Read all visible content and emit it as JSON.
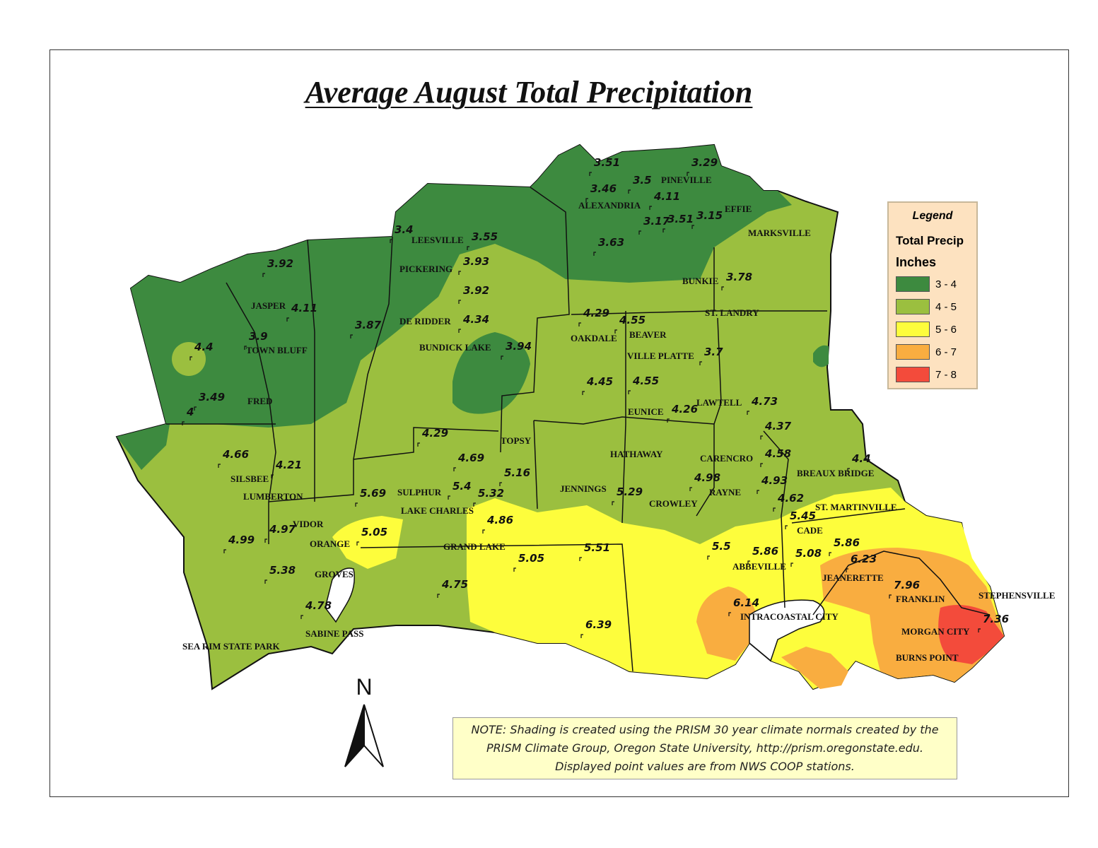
{
  "title": "Average August Total Precipitation",
  "legend": {
    "heading": "Legend",
    "subtitle": "Total Precip",
    "units": "Inches",
    "classes": [
      {
        "label": "3 - 4",
        "color": "#3d8a3f"
      },
      {
        "label": "4 - 5",
        "color": "#9bbf3f"
      },
      {
        "label": "5 - 6",
        "color": "#fdfd3c"
      },
      {
        "label": "6 - 7",
        "color": "#f9ad40"
      },
      {
        "label": "7 - 8",
        "color": "#f34b3b"
      }
    ]
  },
  "north_arrow": {
    "label": "N"
  },
  "note": {
    "line1": "NOTE: Shading is created using the PRISM 30 year climate normals created by the",
    "line2": "PRISM Climate Group, Oregon State University, http://prism.oregonstate.edu.",
    "line3": "Displayed point values are from NWS COOP stations."
  },
  "places": [
    "PINEVILLE",
    "ALEXANDRIA",
    "EFFIE",
    "MARKSVILLE",
    "LEESVILLE",
    "PICKERING",
    "BUNKIE",
    "ST. LANDRY",
    "JASPER",
    "DE RIDDER",
    "OAKDALE",
    "BEAVER",
    "TOWN BLUFF",
    "BUNDICK LAKE",
    "VILLE PLATTE",
    "FRED",
    "EUNICE",
    "LAWTELL",
    "TOPSY",
    "HATHAWAY",
    "CARENCRO",
    "BREAUX BRIDGE",
    "SILSBEE",
    "JENNINGS",
    "RAYNE",
    "LUMBERTON",
    "SULPHUR",
    "CROWLEY",
    "LAKE CHARLES",
    "ST. MARTINVILLE",
    "VIDOR",
    "CADE",
    "ORANGE",
    "GRAND LAKE",
    "ABBEVILLE",
    "GROVES",
    "JEANERETTE",
    "FRANKLIN",
    "STEPHENSVILLE",
    "INTRACOASTAL CITY",
    "MORGAN CITY",
    "SABINE PASS",
    "BURNS POINT",
    "SEA RIM STATE PARK"
  ],
  "station_values": [
    "3.51",
    "3.29",
    "3.5",
    "3.46",
    "4.11",
    "3.17",
    "3.51",
    "3.15",
    "3.4",
    "3.55",
    "3.63",
    "3.93",
    "3.78",
    "3.92",
    "3.92",
    "4.11",
    "3.87",
    "4.34",
    "4.29",
    "4.55",
    "3.9",
    "4.4",
    "3.94",
    "3.7",
    "4.45",
    "4.55",
    "3.49",
    "4",
    "4.26",
    "4.73",
    "4.29",
    "4.37",
    "4.66",
    "4.69",
    "4.58",
    "4.4",
    "4.21",
    "5.16",
    "4.98",
    "5.4",
    "5.32",
    "5.29",
    "4.93",
    "5.69",
    "4.62",
    "4.86",
    "5.45",
    "4.97",
    "5.05",
    "4.99",
    "5.51",
    "5.5",
    "5.86",
    "5.08",
    "5.86",
    "5.38",
    "5.05",
    "6.23",
    "4.75",
    "7.96",
    "4.78",
    "6.14",
    "6.39",
    "7.36"
  ]
}
